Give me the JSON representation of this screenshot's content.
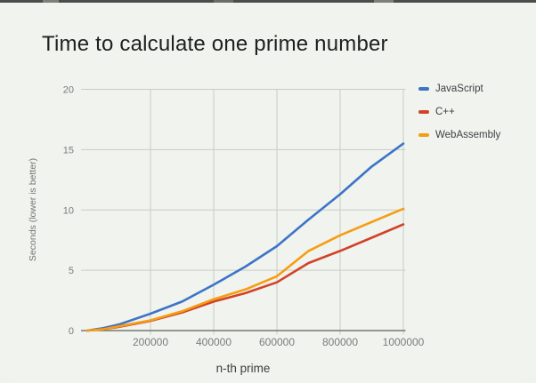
{
  "page": {
    "title": "Time to calculate one prime number"
  },
  "chart_data": {
    "type": "line",
    "title": "Time to calculate one prime number",
    "xlabel": "n-th prime",
    "ylabel": "Seconds (lower is better)",
    "xlim": [
      0,
      1000000
    ],
    "ylim": [
      0,
      20
    ],
    "grid": true,
    "legend_position": "right-top",
    "x": [
      0,
      50000,
      100000,
      200000,
      300000,
      400000,
      500000,
      600000,
      700000,
      800000,
      900000,
      1000000
    ],
    "xticks": [
      {
        "value": 200000,
        "label": "200000"
      },
      {
        "value": 400000,
        "label": "400000"
      },
      {
        "value": 600000,
        "label": "600000"
      },
      {
        "value": 800000,
        "label": "800000"
      },
      {
        "value": 1000000,
        "label": "1000000"
      }
    ],
    "yticks": [
      {
        "value": 0,
        "label": "0"
      },
      {
        "value": 5,
        "label": "5"
      },
      {
        "value": 10,
        "label": "10"
      },
      {
        "value": 15,
        "label": "15"
      },
      {
        "value": 20,
        "label": "20"
      }
    ],
    "series": [
      {
        "name": "JavaScript",
        "color": "#3d74c7",
        "values": [
          0,
          0.2,
          0.5,
          1.4,
          2.4,
          3.8,
          5.3,
          7.0,
          9.2,
          11.3,
          13.6,
          15.5
        ]
      },
      {
        "name": "C++",
        "color": "#d14328",
        "values": [
          0,
          0.1,
          0.3,
          0.8,
          1.5,
          2.4,
          3.1,
          4.0,
          5.6,
          6.6,
          7.7,
          8.8
        ]
      },
      {
        "name": "WebAssembly",
        "color": "#f69d13",
        "values": [
          0,
          0.1,
          0.35,
          0.85,
          1.6,
          2.6,
          3.4,
          4.5,
          6.6,
          7.9,
          9.0,
          10.1
        ]
      }
    ],
    "colors": {
      "background": "#f0f3ee",
      "gridline": "#c9cdc6",
      "axis_line": "#5d615c",
      "tick_label": "#7c7c7c",
      "axis_title": "#3f3f3f"
    }
  }
}
